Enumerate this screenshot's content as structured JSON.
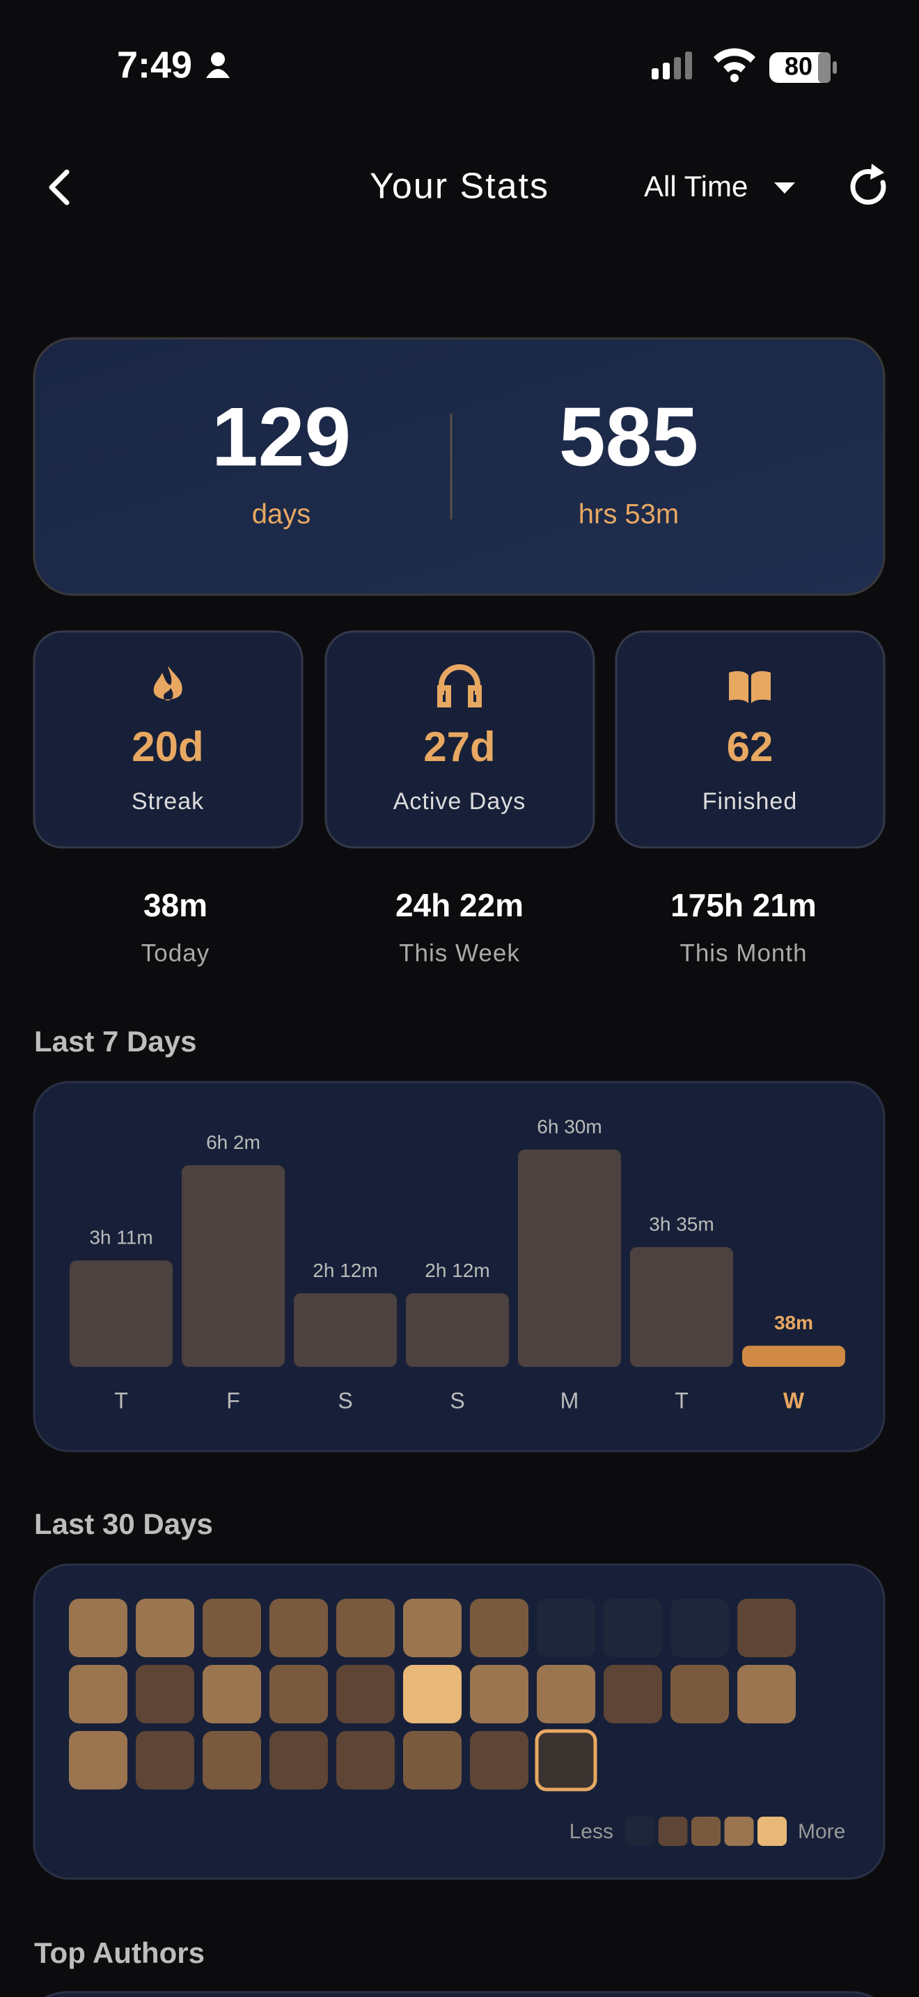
{
  "status_bar": {
    "time": "7:49",
    "battery": "80"
  },
  "header": {
    "title": "Your Stats",
    "filter": "All Time"
  },
  "summary": {
    "days": {
      "value": "129",
      "label": "days"
    },
    "hours": {
      "value": "585",
      "label": "hrs 53m"
    }
  },
  "stat_cards": [
    {
      "value": "20d",
      "label": "Streak"
    },
    {
      "value": "27d",
      "label": "Active Days"
    },
    {
      "value": "62",
      "label": "Finished"
    }
  ],
  "periods": [
    {
      "value": "38m",
      "label": "Today"
    },
    {
      "value": "24h 22m",
      "label": "This Week"
    },
    {
      "value": "175h 21m",
      "label": "This Month"
    }
  ],
  "last_7_days": {
    "title": "Last 7 Days",
    "bar_color": "#4d4240",
    "today_color": "#d08a45",
    "bars": [
      {
        "day": "T",
        "label": "3h 11m",
        "minutes": 191
      },
      {
        "day": "F",
        "label": "6h 2m",
        "minutes": 362
      },
      {
        "day": "S",
        "label": "2h 12m",
        "minutes": 132
      },
      {
        "day": "S",
        "label": "2h 12m",
        "minutes": 132
      },
      {
        "day": "M",
        "label": "6h 30m",
        "minutes": 390
      },
      {
        "day": "T",
        "label": "3h 35m",
        "minutes": 215
      },
      {
        "day": "W",
        "label": "38m",
        "minutes": 38
      }
    ]
  },
  "last_30_days": {
    "title": "Last 30 Days",
    "levels": [
      3,
      3,
      2,
      2,
      2,
      3,
      2,
      0,
      0,
      0,
      1,
      3,
      1,
      3,
      2,
      1,
      4,
      3,
      3,
      1,
      2,
      3,
      3,
      1,
      2,
      1,
      1,
      2,
      1,
      1
    ],
    "level_colors": [
      "#1e273a",
      "#5e4535",
      "#7a5a3e",
      "#9a7550",
      "#e8b878"
    ],
    "legend": {
      "less": "Less",
      "more": "More"
    }
  },
  "top_authors": {
    "title": "Top Authors"
  }
}
